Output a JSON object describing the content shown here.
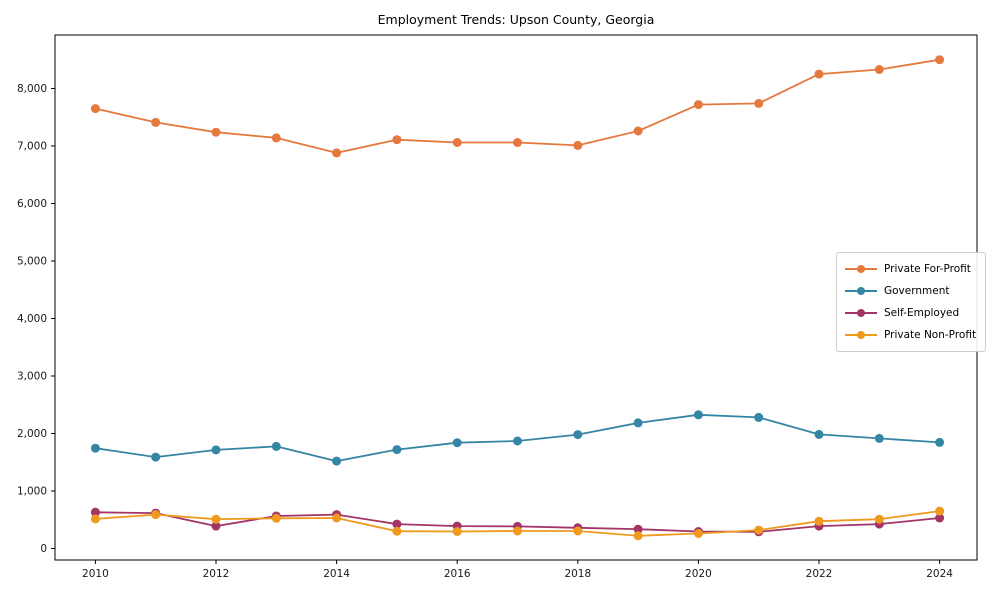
{
  "chart_data": {
    "type": "line",
    "title": "Employment Trends: Upson County, Georgia",
    "xlabel": "",
    "ylabel": "",
    "grid": false,
    "legend_position": "center-right",
    "x": [
      2010,
      2011,
      2012,
      2013,
      2014,
      2015,
      2016,
      2017,
      2018,
      2019,
      2020,
      2021,
      2022,
      2023,
      2024
    ],
    "x_ticks": [
      2010,
      2012,
      2014,
      2016,
      2018,
      2020,
      2022,
      2024
    ],
    "x_tick_labels": [
      "2010",
      "2012",
      "2014",
      "2016",
      "2018",
      "2020",
      "2022",
      "2024"
    ],
    "y_ticks": [
      0,
      1000,
      2000,
      3000,
      4000,
      5000,
      6000,
      7000,
      8000
    ],
    "y_tick_labels": [
      "0",
      "1,000",
      "2,000",
      "3,000",
      "4,000",
      "5,000",
      "6,000",
      "7,000",
      "8,000"
    ],
    "xlim": [
      2009.33,
      2024.62
    ],
    "ylim": [
      -200,
      8930
    ],
    "series": [
      {
        "name": "Private For-Profit",
        "color": "#e5793d",
        "values": [
          7650,
          7410,
          7240,
          7140,
          6880,
          7110,
          7060,
          7060,
          7010,
          7260,
          7720,
          7740,
          8250,
          8330,
          8500
        ]
      },
      {
        "name": "Government",
        "color": "#3585a5",
        "values": [
          1745,
          1590,
          1715,
          1775,
          1520,
          1720,
          1840,
          1870,
          1980,
          2185,
          2325,
          2280,
          1985,
          1915,
          1845
        ]
      },
      {
        "name": "Self-Employed",
        "color": "#a23467",
        "values": [
          630,
          615,
          390,
          565,
          590,
          425,
          390,
          385,
          360,
          335,
          295,
          290,
          390,
          425,
          530
        ]
      },
      {
        "name": "Private Non-Profit",
        "color": "#ef9a1e",
        "values": [
          515,
          590,
          510,
          525,
          530,
          300,
          295,
          305,
          305,
          220,
          260,
          320,
          475,
          510,
          650
        ]
      }
    ]
  },
  "axes": {
    "tick_color": "#000000",
    "spine_color": "#000000",
    "label_color": "#1a1a1a"
  }
}
